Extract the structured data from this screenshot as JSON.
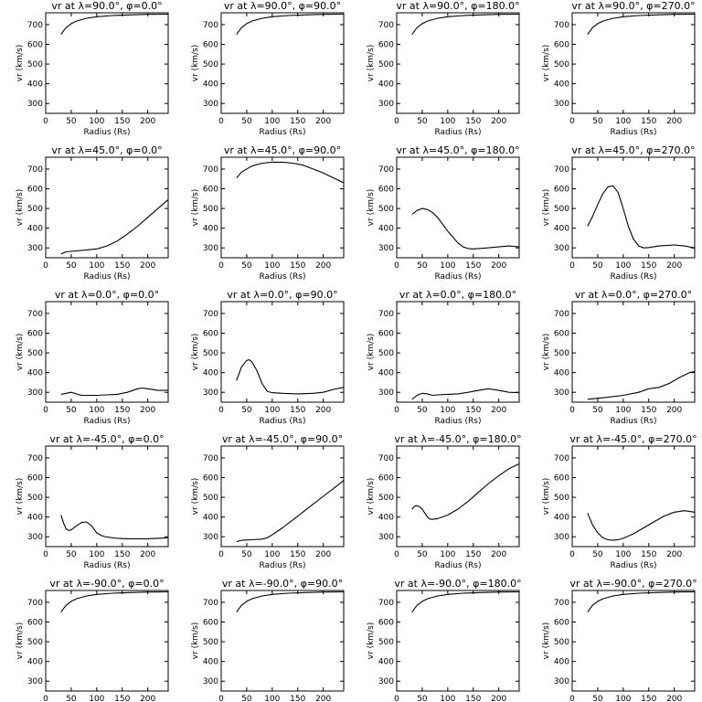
{
  "figure": {
    "background": "#ffffff",
    "line_color": "#000000"
  },
  "chart_data": [
    {
      "type": "line",
      "title": "vr at λ=90.0°, φ=0.0°",
      "xlabel": "Radius (Rs)",
      "ylabel": "vr (km/s)",
      "xlim": [
        0,
        240
      ],
      "ylim": [
        250,
        760
      ],
      "xticks": [
        0,
        50,
        100,
        150,
        200
      ],
      "yticks": [
        300,
        400,
        500,
        600,
        700
      ],
      "series": [
        {
          "x": [
            30,
            35,
            40,
            50,
            60,
            80,
            100,
            130,
            170,
            200,
            240
          ],
          "y": [
            650,
            668,
            685,
            705,
            718,
            732,
            740,
            746,
            750,
            752,
            753
          ]
        }
      ]
    },
    {
      "type": "line",
      "title": "vr at λ=90.0°, φ=90.0°",
      "xlabel": "Radius (Rs)",
      "ylabel": "vr (km/s)",
      "xlim": [
        0,
        240
      ],
      "ylim": [
        250,
        760
      ],
      "xticks": [
        0,
        50,
        100,
        150,
        200
      ],
      "yticks": [
        300,
        400,
        500,
        600,
        700
      ],
      "series": [
        {
          "x": [
            30,
            35,
            40,
            50,
            60,
            80,
            100,
            130,
            170,
            200,
            240
          ],
          "y": [
            650,
            668,
            685,
            705,
            718,
            732,
            740,
            746,
            750,
            752,
            753
          ]
        }
      ]
    },
    {
      "type": "line",
      "title": "vr at λ=90.0°, φ=180.0°",
      "xlabel": "Radius (Rs)",
      "ylabel": "vr (km/s)",
      "xlim": [
        0,
        240
      ],
      "ylim": [
        250,
        760
      ],
      "xticks": [
        0,
        50,
        100,
        150,
        200
      ],
      "yticks": [
        300,
        400,
        500,
        600,
        700
      ],
      "series": [
        {
          "x": [
            30,
            35,
            40,
            50,
            60,
            80,
            100,
            130,
            170,
            200,
            240
          ],
          "y": [
            650,
            668,
            685,
            705,
            718,
            732,
            740,
            746,
            750,
            752,
            753
          ]
        }
      ]
    },
    {
      "type": "line",
      "title": "vr at λ=90.0°, φ=270.0°",
      "xlabel": "Radius (Rs)",
      "ylabel": "vr (km/s)",
      "xlim": [
        0,
        240
      ],
      "ylim": [
        250,
        760
      ],
      "xticks": [
        0,
        50,
        100,
        150,
        200
      ],
      "yticks": [
        300,
        400,
        500,
        600,
        700
      ],
      "series": [
        {
          "x": [
            30,
            35,
            40,
            50,
            60,
            80,
            100,
            130,
            170,
            200,
            240
          ],
          "y": [
            650,
            668,
            685,
            705,
            718,
            732,
            740,
            746,
            750,
            752,
            753
          ]
        }
      ]
    },
    {
      "type": "line",
      "title": "vr at λ=45.0°, φ=0.0°",
      "xlabel": "Radius (Rs)",
      "ylabel": "vr (km/s)",
      "xlim": [
        0,
        240
      ],
      "ylim": [
        250,
        760
      ],
      "xticks": [
        0,
        50,
        100,
        150,
        200
      ],
      "yticks": [
        300,
        400,
        500,
        600,
        700
      ],
      "series": [
        {
          "x": [
            30,
            40,
            60,
            80,
            100,
            120,
            140,
            160,
            180,
            200,
            220,
            240
          ],
          "y": [
            270,
            280,
            285,
            290,
            295,
            310,
            335,
            370,
            410,
            455,
            500,
            545
          ]
        }
      ]
    },
    {
      "type": "line",
      "title": "vr at λ=45.0°, φ=90.0°",
      "xlabel": "Radius (Rs)",
      "ylabel": "vr (km/s)",
      "xlim": [
        0,
        240
      ],
      "ylim": [
        250,
        760
      ],
      "xticks": [
        0,
        50,
        100,
        150,
        200
      ],
      "yticks": [
        300,
        400,
        500,
        600,
        700
      ],
      "series": [
        {
          "x": [
            30,
            40,
            60,
            80,
            100,
            120,
            140,
            160,
            180,
            200,
            220,
            240
          ],
          "y": [
            655,
            685,
            715,
            730,
            735,
            735,
            730,
            720,
            700,
            680,
            655,
            630
          ]
        }
      ]
    },
    {
      "type": "line",
      "title": "vr at λ=45.0°, φ=180.0°",
      "xlabel": "Radius (Rs)",
      "ylabel": "vr (km/s)",
      "xlim": [
        0,
        240
      ],
      "ylim": [
        250,
        760
      ],
      "xticks": [
        0,
        50,
        100,
        150,
        200
      ],
      "yticks": [
        300,
        400,
        500,
        600,
        700
      ],
      "series": [
        {
          "x": [
            30,
            40,
            50,
            60,
            70,
            80,
            90,
            100,
            110,
            120,
            130,
            140,
            150,
            170,
            200,
            220,
            240
          ],
          "y": [
            470,
            490,
            500,
            495,
            480,
            455,
            420,
            385,
            355,
            325,
            305,
            297,
            295,
            298,
            305,
            310,
            305
          ]
        }
      ]
    },
    {
      "type": "line",
      "title": "vr at λ=45.0°, φ=270.0°",
      "xlabel": "Radius (Rs)",
      "ylabel": "vr (km/s)",
      "xlim": [
        0,
        240
      ],
      "ylim": [
        250,
        760
      ],
      "xticks": [
        0,
        50,
        100,
        150,
        200
      ],
      "yticks": [
        300,
        400,
        500,
        600,
        700
      ],
      "series": [
        {
          "x": [
            30,
            40,
            50,
            60,
            70,
            80,
            90,
            100,
            110,
            120,
            130,
            140,
            150,
            170,
            200,
            220,
            240
          ],
          "y": [
            410,
            460,
            520,
            575,
            610,
            615,
            580,
            500,
            410,
            345,
            310,
            300,
            302,
            310,
            315,
            310,
            300
          ]
        }
      ]
    },
    {
      "type": "line",
      "title": "vr at λ=0.0°, φ=0.0°",
      "xlabel": "Radius (Rs)",
      "ylabel": "vr (km/s)",
      "xlim": [
        0,
        240
      ],
      "ylim": [
        250,
        760
      ],
      "xticks": [
        0,
        50,
        100,
        150,
        200
      ],
      "yticks": [
        300,
        400,
        500,
        600,
        700
      ],
      "series": [
        {
          "x": [
            30,
            40,
            50,
            60,
            70,
            80,
            100,
            120,
            140,
            160,
            180,
            190,
            200,
            220,
            240
          ],
          "y": [
            290,
            295,
            300,
            292,
            285,
            285,
            285,
            287,
            290,
            300,
            318,
            322,
            318,
            310,
            310
          ]
        }
      ]
    },
    {
      "type": "line",
      "title": "vr at λ=0.0°, φ=90.0°",
      "xlabel": "Radius (Rs)",
      "ylabel": "vr (km/s)",
      "xlim": [
        0,
        240
      ],
      "ylim": [
        250,
        760
      ],
      "xticks": [
        0,
        50,
        100,
        150,
        200
      ],
      "yticks": [
        300,
        400,
        500,
        600,
        700
      ],
      "series": [
        {
          "x": [
            30,
            35,
            40,
            50,
            55,
            60,
            70,
            80,
            90,
            100,
            120,
            150,
            180,
            200,
            220,
            240
          ],
          "y": [
            360,
            395,
            430,
            462,
            465,
            455,
            410,
            345,
            305,
            298,
            295,
            292,
            295,
            300,
            315,
            325
          ]
        }
      ]
    },
    {
      "type": "line",
      "title": "vr at λ=0.0°, φ=180.0°",
      "xlabel": "Radius (Rs)",
      "ylabel": "vr (km/s)",
      "xlim": [
        0,
        240
      ],
      "ylim": [
        250,
        760
      ],
      "xticks": [
        0,
        50,
        100,
        150,
        200
      ],
      "yticks": [
        300,
        400,
        500,
        600,
        700
      ],
      "series": [
        {
          "x": [
            30,
            40,
            50,
            60,
            70,
            80,
            100,
            120,
            140,
            160,
            180,
            200,
            220,
            240
          ],
          "y": [
            265,
            285,
            295,
            292,
            285,
            287,
            290,
            292,
            300,
            310,
            318,
            310,
            300,
            298
          ]
        }
      ]
    },
    {
      "type": "line",
      "title": "vr at λ=0.0°, φ=270.0°",
      "xlabel": "Radius (Rs)",
      "ylabel": "vr (km/s)",
      "xlim": [
        0,
        240
      ],
      "ylim": [
        250,
        760
      ],
      "xticks": [
        0,
        50,
        100,
        150,
        200
      ],
      "yticks": [
        300,
        400,
        500,
        600,
        700
      ],
      "series": [
        {
          "x": [
            30,
            50,
            70,
            100,
            130,
            150,
            170,
            190,
            210,
            230,
            240
          ],
          "y": [
            265,
            270,
            275,
            285,
            300,
            318,
            325,
            345,
            375,
            400,
            405
          ]
        }
      ]
    },
    {
      "type": "line",
      "title": "vr at λ=-45.0°, φ=0.0°",
      "xlabel": "Radius (Rs)",
      "ylabel": "vr (km/s)",
      "xlim": [
        0,
        240
      ],
      "ylim": [
        250,
        760
      ],
      "xticks": [
        0,
        50,
        100,
        150,
        200
      ],
      "yticks": [
        300,
        400,
        500,
        600,
        700
      ],
      "series": [
        {
          "x": [
            30,
            35,
            40,
            45,
            50,
            55,
            60,
            70,
            80,
            90,
            100,
            110,
            120,
            140,
            160,
            180,
            200,
            220,
            240
          ],
          "y": [
            410,
            370,
            340,
            332,
            335,
            345,
            355,
            372,
            375,
            355,
            320,
            305,
            298,
            292,
            290,
            290,
            290,
            292,
            295
          ]
        }
      ]
    },
    {
      "type": "line",
      "title": "vr at λ=-45.0°, φ=90.0°",
      "xlabel": "Radius (Rs)",
      "ylabel": "vr (km/s)",
      "xlim": [
        0,
        240
      ],
      "ylim": [
        250,
        760
      ],
      "xticks": [
        0,
        50,
        100,
        150,
        200
      ],
      "yticks": [
        300,
        400,
        500,
        600,
        700
      ],
      "series": [
        {
          "x": [
            30,
            40,
            60,
            80,
            90,
            100,
            120,
            140,
            160,
            180,
            200,
            220,
            240
          ],
          "y": [
            275,
            282,
            285,
            288,
            295,
            310,
            345,
            385,
            425,
            465,
            505,
            545,
            585
          ]
        }
      ]
    },
    {
      "type": "line",
      "title": "vr at λ=-45.0°, φ=180.0°",
      "xlabel": "Radius (Rs)",
      "ylabel": "vr (km/s)",
      "xlim": [
        0,
        240
      ],
      "ylim": [
        250,
        760
      ],
      "xticks": [
        0,
        50,
        100,
        150,
        200
      ],
      "yticks": [
        300,
        400,
        500,
        600,
        700
      ],
      "series": [
        {
          "x": [
            30,
            35,
            40,
            45,
            50,
            55,
            60,
            65,
            70,
            80,
            100,
            120,
            140,
            160,
            180,
            200,
            220,
            240
          ],
          "y": [
            440,
            455,
            458,
            452,
            440,
            420,
            400,
            390,
            388,
            392,
            410,
            440,
            480,
            525,
            570,
            610,
            645,
            670
          ]
        }
      ]
    },
    {
      "type": "line",
      "title": "vr at λ=-45.0°, φ=270.0°",
      "xlabel": "Radius (Rs)",
      "ylabel": "vr (km/s)",
      "xlim": [
        0,
        240
      ],
      "ylim": [
        250,
        760
      ],
      "xticks": [
        0,
        50,
        100,
        150,
        200
      ],
      "yticks": [
        300,
        400,
        500,
        600,
        700
      ],
      "series": [
        {
          "x": [
            30,
            35,
            40,
            50,
            60,
            70,
            80,
            90,
            100,
            120,
            140,
            160,
            180,
            200,
            220,
            240
          ],
          "y": [
            420,
            390,
            360,
            320,
            295,
            285,
            282,
            285,
            292,
            315,
            345,
            375,
            405,
            425,
            432,
            425
          ]
        }
      ]
    },
    {
      "type": "line",
      "title": "vr at λ=-90.0°, φ=0.0°",
      "xlabel": "Radius (Rs)",
      "ylabel": "vr (km/s)",
      "xlim": [
        0,
        240
      ],
      "ylim": [
        250,
        760
      ],
      "xticks": [
        0,
        50,
        100,
        150,
        200
      ],
      "yticks": [
        300,
        400,
        500,
        600,
        700
      ],
      "series": [
        {
          "x": [
            30,
            35,
            40,
            50,
            60,
            80,
            100,
            130,
            170,
            200,
            240
          ],
          "y": [
            650,
            668,
            685,
            705,
            718,
            732,
            740,
            746,
            750,
            752,
            753
          ]
        }
      ]
    },
    {
      "type": "line",
      "title": "vr at λ=-90.0°, φ=90.0°",
      "xlabel": "Radius (Rs)",
      "ylabel": "vr (km/s)",
      "xlim": [
        0,
        240
      ],
      "ylim": [
        250,
        760
      ],
      "xticks": [
        0,
        50,
        100,
        150,
        200
      ],
      "yticks": [
        300,
        400,
        500,
        600,
        700
      ],
      "series": [
        {
          "x": [
            30,
            35,
            40,
            50,
            60,
            80,
            100,
            130,
            170,
            200,
            240
          ],
          "y": [
            650,
            668,
            685,
            705,
            718,
            732,
            740,
            746,
            750,
            752,
            753
          ]
        }
      ]
    },
    {
      "type": "line",
      "title": "vr at λ=-90.0°, φ=180.0°",
      "xlabel": "Radius (Rs)",
      "ylabel": "vr (km/s)",
      "xlim": [
        0,
        240
      ],
      "ylim": [
        250,
        760
      ],
      "xticks": [
        0,
        50,
        100,
        150,
        200
      ],
      "yticks": [
        300,
        400,
        500,
        600,
        700
      ],
      "series": [
        {
          "x": [
            30,
            35,
            40,
            50,
            60,
            80,
            100,
            130,
            170,
            200,
            240
          ],
          "y": [
            650,
            668,
            685,
            705,
            718,
            732,
            740,
            746,
            750,
            752,
            753
          ]
        }
      ]
    },
    {
      "type": "line",
      "title": "vr at λ=-90.0°, φ=270.0°",
      "xlabel": "Radius (Rs)",
      "ylabel": "vr (km/s)",
      "xlim": [
        0,
        240
      ],
      "ylim": [
        250,
        760
      ],
      "xticks": [
        0,
        50,
        100,
        150,
        200
      ],
      "yticks": [
        300,
        400,
        500,
        600,
        700
      ],
      "series": [
        {
          "x": [
            30,
            35,
            40,
            50,
            60,
            80,
            100,
            130,
            170,
            200,
            240
          ],
          "y": [
            650,
            668,
            685,
            705,
            718,
            732,
            740,
            746,
            750,
            752,
            753
          ]
        }
      ]
    }
  ]
}
